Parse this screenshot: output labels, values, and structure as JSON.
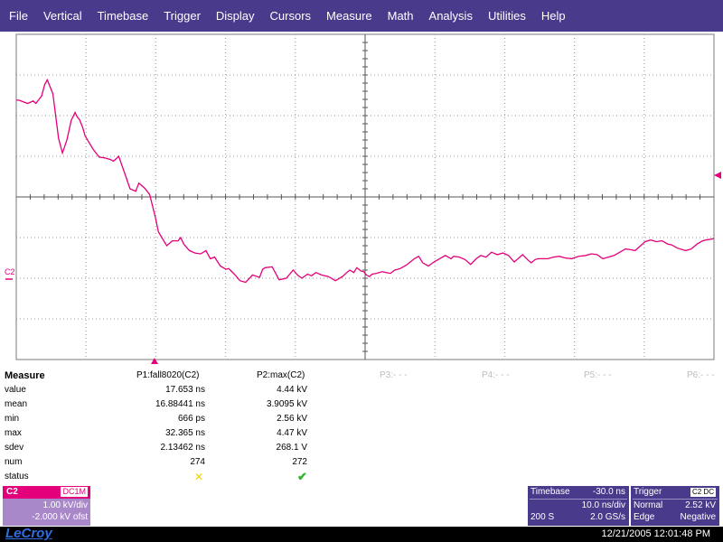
{
  "menu": [
    "File",
    "Vertical",
    "Timebase",
    "Trigger",
    "Display",
    "Cursors",
    "Measure",
    "Math",
    "Analysis",
    "Utilities",
    "Help"
  ],
  "colors": {
    "trace": "#e3007a",
    "menu_bg": "#4a3a8c",
    "channel_panel": "#a988c9",
    "pass_check": "#2db52d",
    "fail_x": "#e8d800"
  },
  "trace_label": "C2",
  "measure": {
    "title": "Measure",
    "p1_header": "P1:fall8020(C2)",
    "p2_header": "P2:max(C2)",
    "empty_params": [
      "P3:- - -",
      "P4:- - -",
      "P5:- - -",
      "P6:- - -"
    ],
    "rows": [
      {
        "label": "value",
        "p1": "17.653 ns",
        "p2": "4.44 kV"
      },
      {
        "label": "mean",
        "p1": "16.88441 ns",
        "p2": "3.9095 kV"
      },
      {
        "label": "min",
        "p1": "666 ps",
        "p2": "2.56 kV"
      },
      {
        "label": "max",
        "p1": "32.365 ns",
        "p2": "4.47 kV"
      },
      {
        "label": "sdev",
        "p1": "2.13462 ns",
        "p2": "268.1 V"
      },
      {
        "label": "num",
        "p1": "274",
        "p2": "272"
      },
      {
        "label": "status",
        "p1": "",
        "p2": ""
      }
    ],
    "status_icons": {
      "p1": "x-mark-icon",
      "p2": "check-mark-icon"
    }
  },
  "channel": {
    "name": "C2",
    "coupling": "DC1M",
    "volts_div": "1.00 kV/div",
    "offset": "-2.000 kV ofst"
  },
  "timebase": {
    "title": "Timebase",
    "delay": "-30.0 ns",
    "time_div": "10.0 ns/div",
    "samples": "200 S",
    "sample_rate": "2.0 GS/s"
  },
  "trigger": {
    "title": "Trigger",
    "source": "C2 DC",
    "mode": "Normal",
    "level": "2.52 kV",
    "type": "Edge",
    "slope": "Negative"
  },
  "brand": "LeCroy",
  "datetime": "12/21/2005 12:01:48 PM",
  "chart_data": {
    "type": "line",
    "series": [
      {
        "name": "C2",
        "x_units": "ns",
        "y_units": "kV",
        "x": [
          -80.0,
          -79.4,
          -77.4,
          -76.1,
          -75.5,
          -74.8,
          -74.2,
          -73.5,
          -72.9,
          -71.6,
          -70.3,
          -69.4,
          -68.4,
          -67.4,
          -66.5,
          -66.1,
          -65.5,
          -64.8,
          -64.2,
          -62.3,
          -61.0,
          -59.7,
          -58.4,
          -57.7,
          -56.5,
          -55.2,
          -53.9,
          -52.6,
          -51.9,
          -50.6,
          -49.4,
          -48.1,
          -47.4,
          -45.5,
          -44.2,
          -42.9,
          -42.3,
          -41.6,
          -40.3,
          -39.0,
          -37.7,
          -36.5,
          -35.5,
          -34.5,
          -33.2,
          -31.9,
          -31.3,
          -30.0,
          -28.7,
          -27.4,
          -25.8,
          -24.2,
          -23.5,
          -22.9,
          -21.3,
          -19.7,
          -18.1,
          -16.5,
          -15.5,
          -14.5,
          -13.2,
          -12.3,
          -11.3,
          -10.0,
          -8.4,
          -6.8,
          -5.2,
          -4.2,
          -3.5,
          -2.6,
          -1.9,
          -1.0,
          -0.3,
          0.3,
          1.0,
          1.6,
          2.6,
          3.9,
          4.8,
          5.8,
          6.8,
          8.1,
          9.4,
          10.6,
          11.3,
          12.3,
          13.2,
          14.5,
          15.8,
          17.1,
          18.4,
          19.7,
          20.3,
          21.6,
          22.9,
          24.2,
          25.5,
          26.5,
          27.7,
          29.0,
          30.3,
          31.6,
          32.9,
          34.2,
          35.5,
          36.1,
          37.4,
          38.1,
          39.0,
          39.7,
          40.6,
          41.9,
          43.2,
          44.5,
          45.8,
          47.4,
          49.0,
          50.6,
          51.9,
          53.2,
          54.5,
          55.8,
          57.1,
          58.4,
          59.7,
          61.0,
          61.9,
          63.2,
          64.2,
          65.5,
          66.8,
          68.1,
          69.4,
          70.3,
          71.6,
          72.9,
          73.5,
          74.8,
          76.1,
          77.4,
          78.1,
          79.4,
          80.0
        ],
        "y": [
          2.38,
          2.38,
          2.3,
          2.36,
          2.3,
          2.4,
          2.48,
          2.76,
          2.88,
          2.54,
          1.44,
          1.08,
          1.4,
          1.88,
          2.08,
          1.98,
          1.9,
          1.72,
          1.5,
          1.16,
          0.98,
          0.96,
          0.92,
          0.88,
          1.0,
          0.6,
          0.2,
          0.14,
          0.34,
          0.22,
          0.06,
          -0.5,
          -0.86,
          -1.2,
          -1.08,
          -1.08,
          -1.0,
          -1.16,
          -1.32,
          -1.38,
          -1.4,
          -1.32,
          -1.52,
          -1.48,
          -1.7,
          -1.78,
          -1.76,
          -1.9,
          -2.06,
          -2.1,
          -1.92,
          -1.98,
          -1.78,
          -1.74,
          -1.72,
          -2.04,
          -2.0,
          -1.8,
          -1.92,
          -2.0,
          -1.9,
          -1.94,
          -1.86,
          -1.92,
          -1.96,
          -2.06,
          -1.96,
          -1.86,
          -1.8,
          -1.86,
          -1.74,
          -1.82,
          -1.84,
          -1.92,
          -1.96,
          -1.9,
          -1.88,
          -1.84,
          -1.86,
          -1.88,
          -1.8,
          -1.76,
          -1.68,
          -1.58,
          -1.52,
          -1.46,
          -1.62,
          -1.7,
          -1.6,
          -1.52,
          -1.44,
          -1.52,
          -1.46,
          -1.48,
          -1.54,
          -1.66,
          -1.52,
          -1.44,
          -1.48,
          -1.36,
          -1.42,
          -1.38,
          -1.44,
          -1.6,
          -1.48,
          -1.42,
          -1.56,
          -1.62,
          -1.54,
          -1.52,
          -1.52,
          -1.52,
          -1.48,
          -1.46,
          -1.5,
          -1.52,
          -1.46,
          -1.44,
          -1.4,
          -1.42,
          -1.52,
          -1.48,
          -1.44,
          -1.36,
          -1.28,
          -1.3,
          -1.32,
          -1.2,
          -1.1,
          -1.06,
          -1.1,
          -1.08,
          -1.16,
          -1.18,
          -1.26,
          -1.3,
          -1.32,
          -1.28,
          -1.16,
          -1.08,
          -1.06,
          -1.04,
          -1.02
        ]
      }
    ],
    "xlim": [
      -80,
      80
    ],
    "ylim": [
      -4.0,
      4.0
    ],
    "grid": true
  }
}
